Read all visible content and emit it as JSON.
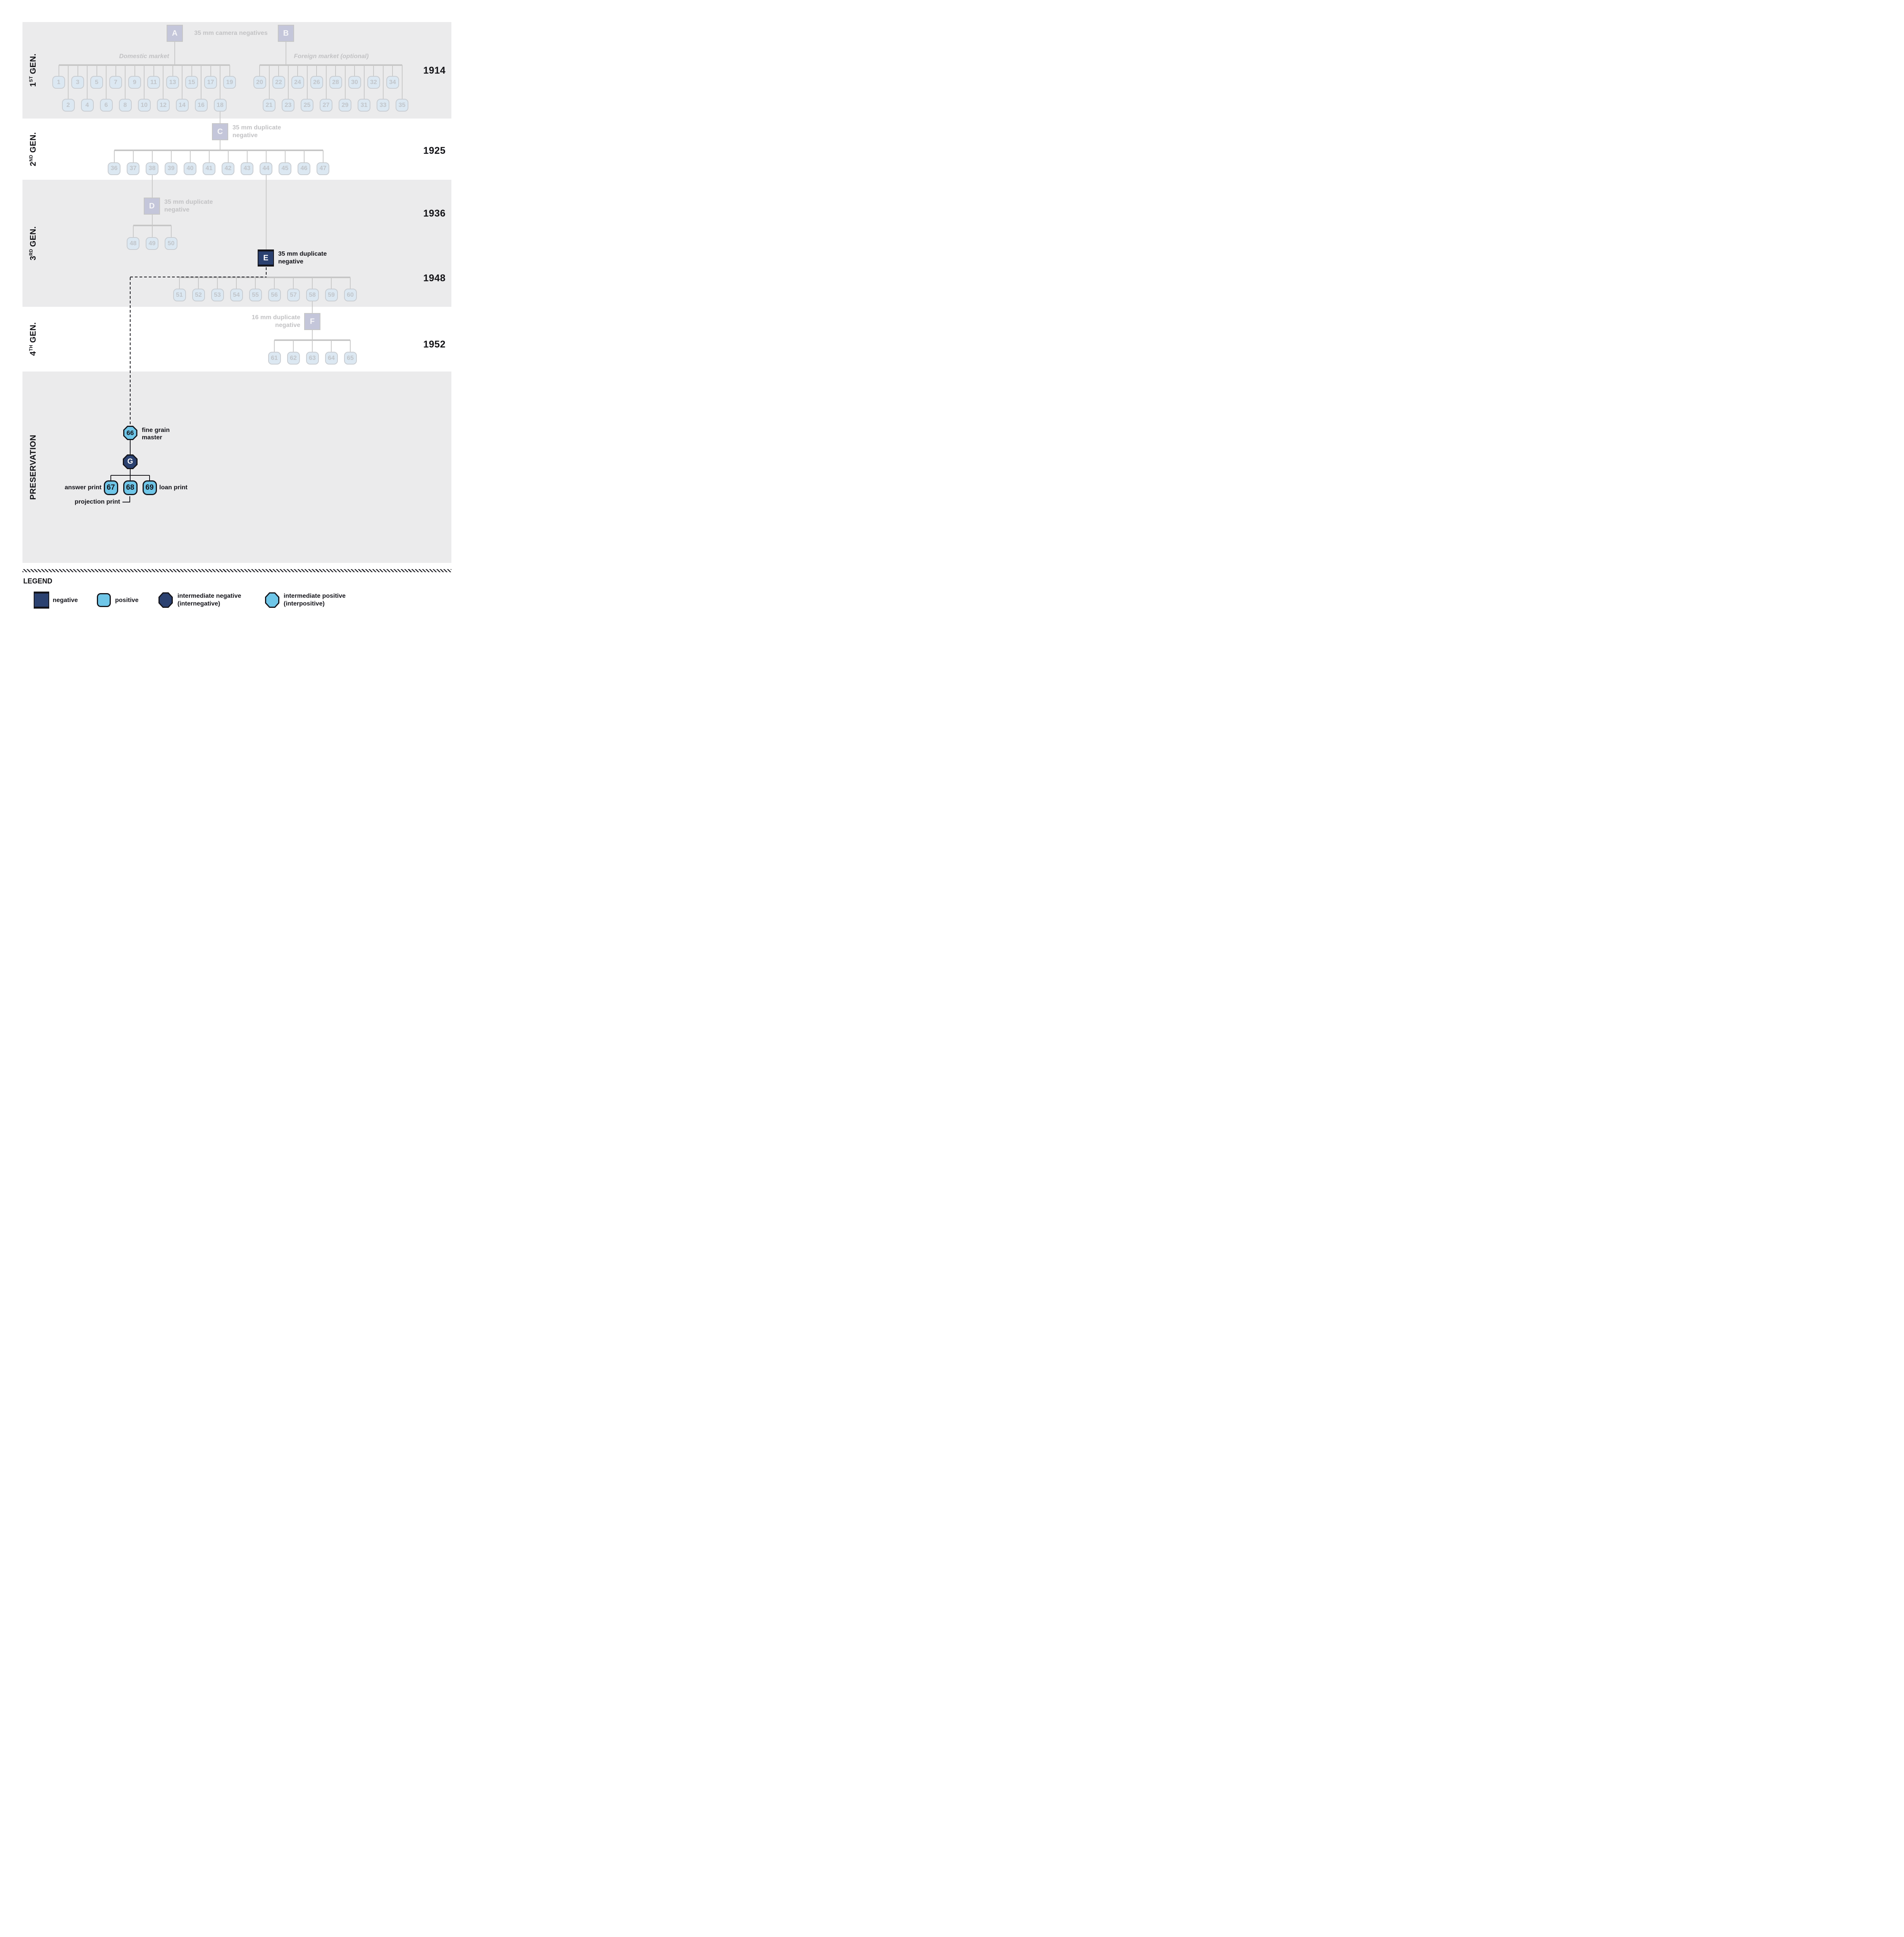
{
  "colors": {
    "bandGray": "#ebebec",
    "lineGray": "#c9c9c9",
    "barGray": "#c6c6c6",
    "fadedBoxFill": "#dce8f2",
    "fadedBoxBorder": "#c9cdd2",
    "fadedNum": "#c1c5ca",
    "lavender": "#c4c6da",
    "fadedBorder": "#c6c6c6",
    "fadedText": "#c2c2c4",
    "navy": "#2b4170",
    "blue": "#6fc6e8",
    "black": "#14141a"
  },
  "sections": [
    {
      "num": "1",
      "sup": "ST",
      "word": "GEN."
    },
    {
      "num": "2",
      "sup": "ND",
      "word": "GEN."
    },
    {
      "num": "3",
      "sup": "RD",
      "word": "GEN."
    },
    {
      "num": "4",
      "sup": "TH",
      "word": "GEN."
    },
    {
      "num": "",
      "sup": "",
      "word": "PRESERVATION"
    }
  ],
  "years": [
    "1914",
    "1925",
    "1936",
    "1948",
    "1952"
  ],
  "nodes": {
    "a_letter": "A",
    "b_letter": "B",
    "c_letter": "C",
    "d_letter": "D",
    "e_letter": "E",
    "f_letter": "F",
    "g_letter": "G",
    "ab_label": "35 mm camera negatives",
    "domestic_market": "Domestic market",
    "foreign_market": "Foreign market (optional)",
    "c_label_1": "35 mm duplicate",
    "c_label_2": "negative",
    "d_label_1": "35 mm duplicate",
    "d_label_2": "negative",
    "e_label_1": "35 mm duplicate",
    "e_label_2": "negative",
    "f_label_1": "16 mm duplicate",
    "f_label_2": "negative",
    "fgm_number": "66",
    "fgm_label_1": "fine grain",
    "fgm_label_2": "master",
    "answer_print": "answer print",
    "projection_print": "projection print",
    "loan_print": "loan print"
  },
  "series": {
    "domestic_top": [
      1,
      3,
      5,
      7,
      9,
      11,
      13,
      15,
      17,
      19
    ],
    "domestic_bottom": [
      2,
      4,
      6,
      8,
      10,
      12,
      14,
      16,
      18
    ],
    "foreign_top": [
      20,
      22,
      24,
      26,
      28,
      30,
      32,
      34
    ],
    "foreign_bottom": [
      21,
      23,
      25,
      27,
      29,
      31,
      33,
      35
    ],
    "gen2": [
      36,
      37,
      38,
      39,
      40,
      41,
      42,
      43,
      44,
      45,
      46,
      47
    ],
    "gen3_d": [
      48,
      49,
      50
    ],
    "gen3_e": [
      51,
      52,
      53,
      54,
      55,
      56,
      57,
      58,
      59,
      60
    ],
    "gen4_f": [
      61,
      62,
      63,
      64,
      65
    ],
    "preservation": [
      67,
      68,
      69
    ]
  },
  "legend": {
    "title": "LEGEND",
    "negative": "negative",
    "positive": "positive",
    "internegative_1": "intermediate negative",
    "internegative_2": "(internegative)",
    "interpositive_1": "intermediate positive",
    "interpositive_2": "(interpositive)"
  }
}
